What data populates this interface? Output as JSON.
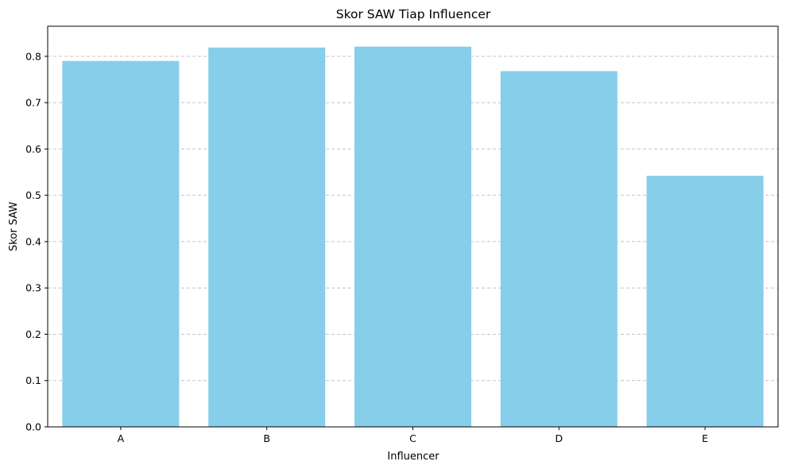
{
  "chart_data": {
    "type": "bar",
    "title": "Skor SAW Tiap Influencer",
    "xlabel": "Influencer",
    "ylabel": "Skor SAW",
    "categories": [
      "A",
      "B",
      "C",
      "D",
      "E"
    ],
    "values": [
      0.79,
      0.819,
      0.821,
      0.768,
      0.542
    ],
    "ylim": [
      0,
      0.865
    ],
    "yticks": [
      0.0,
      0.1,
      0.2,
      0.3,
      0.4,
      0.5,
      0.6,
      0.7,
      0.8
    ],
    "ytick_labels": [
      "0.0",
      "0.1",
      "0.2",
      "0.3",
      "0.4",
      "0.5",
      "0.6",
      "0.7",
      "0.8"
    ],
    "grid": "y-dashed",
    "colors": {
      "bar": "#87ceeb",
      "grid": "#c4c4c4",
      "axis": "#000000"
    }
  }
}
